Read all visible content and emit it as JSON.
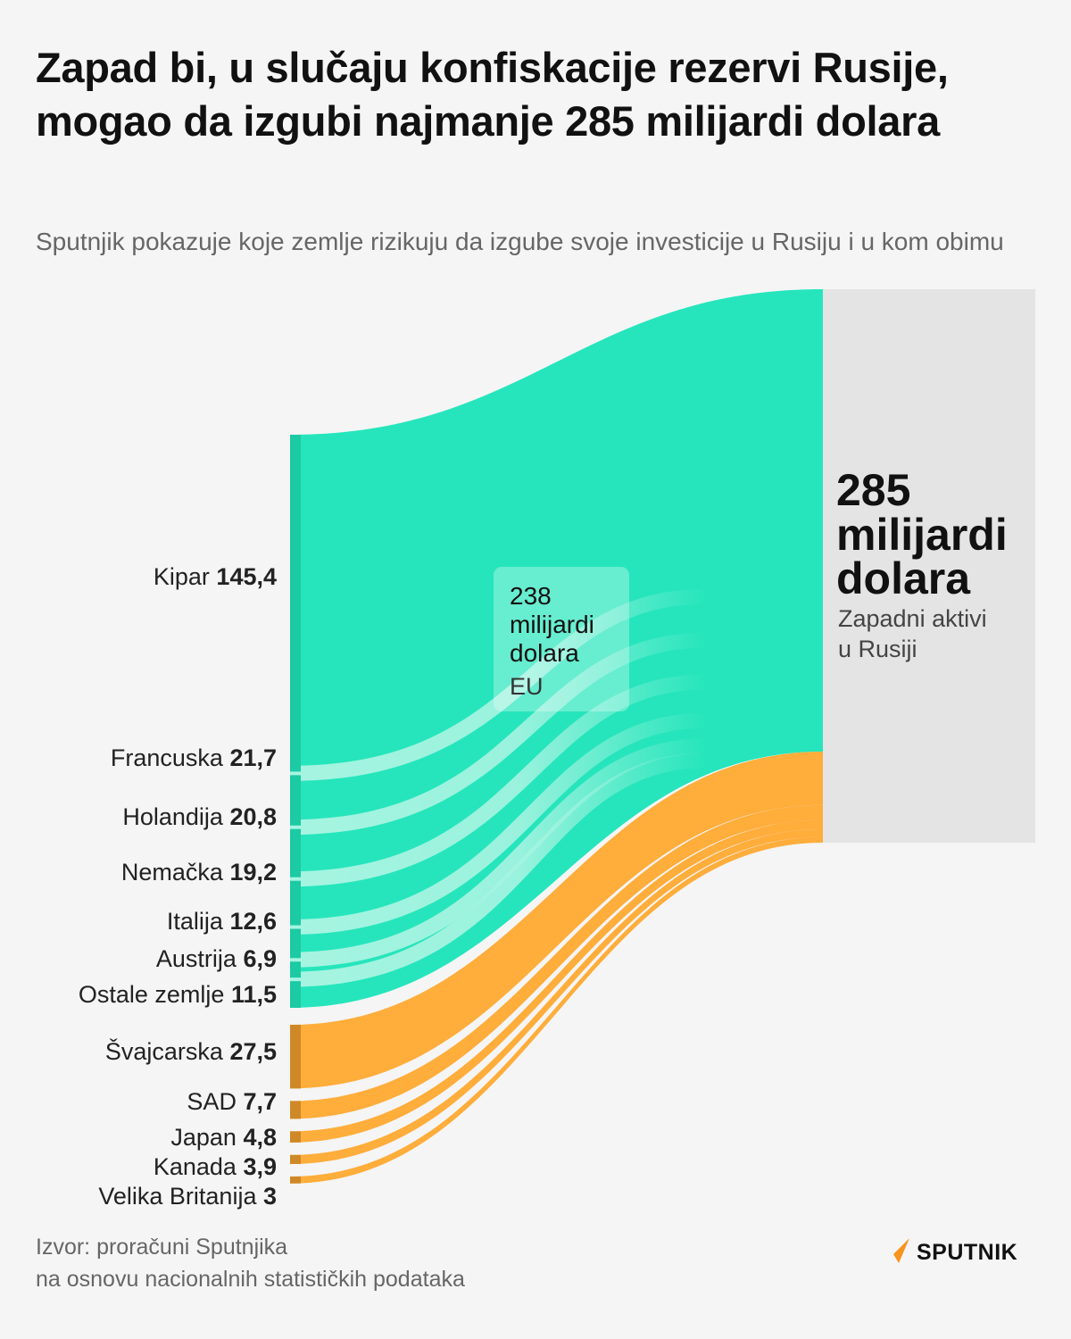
{
  "title": "Zapad bi, u slučaju konfiskacije rezervi Rusije, mogao da izgubi najmanje 285 milijardi dolara",
  "subtitle": "Sputnjik pokazuje koje zemlje rizikuju da izgube svoje investicije u Rusiju i u kom obimu",
  "source_line1": "Izvor: proračuni Sputnjika",
  "source_line2": "na osnovu nacionalnih statističkih podataka",
  "brand": "SPUTNIK",
  "colors": {
    "eu": "#26e5bc",
    "eu_light": "#a6f4e1",
    "eu_dark": "#1ccaa4",
    "non_eu": "#ffad3b",
    "non_eu_dark": "#cf8828",
    "total_box": "#e4e4e4",
    "brand_accent": "#f7931e"
  },
  "chart_data": {
    "type": "sankey",
    "unit": "milijardi dolara",
    "total": {
      "value_label": "285",
      "unit_line1": "milijardi",
      "unit_line2": "dolara",
      "caption_line1": "Zapadni aktivi",
      "caption_line2": "u Rusiji"
    },
    "eu_group": {
      "value_label": "238",
      "unit_line1": "milijardi",
      "unit_line2": "dolara",
      "caption": "EU"
    },
    "sources": [
      {
        "name": "Kipar",
        "value": 145.4,
        "value_label": "145,4",
        "group": "eu"
      },
      {
        "name": "Francuska",
        "value": 21.7,
        "value_label": "21,7",
        "group": "eu"
      },
      {
        "name": "Holandija",
        "value": 20.8,
        "value_label": "20,8",
        "group": "eu"
      },
      {
        "name": "Nemačka",
        "value": 19.2,
        "value_label": "19,2",
        "group": "eu"
      },
      {
        "name": "Italija",
        "value": 12.6,
        "value_label": "12,6",
        "group": "eu"
      },
      {
        "name": "Austrija",
        "value": 6.9,
        "value_label": "6,9",
        "group": "eu"
      },
      {
        "name": "Ostale zemlje",
        "value": 11.5,
        "value_label": "11,5",
        "group": "eu"
      },
      {
        "name": "Švajcarska",
        "value": 27.5,
        "value_label": "27,5",
        "group": "non_eu"
      },
      {
        "name": "SAD",
        "value": 7.7,
        "value_label": "7,7",
        "group": "non_eu"
      },
      {
        "name": "Japan",
        "value": 4.8,
        "value_label": "4,8",
        "group": "non_eu"
      },
      {
        "name": "Kanada",
        "value": 3.9,
        "value_label": "3,9",
        "group": "non_eu"
      },
      {
        "name": "Velika Britanija",
        "value": 3,
        "value_label": "3",
        "group": "non_eu"
      }
    ]
  }
}
